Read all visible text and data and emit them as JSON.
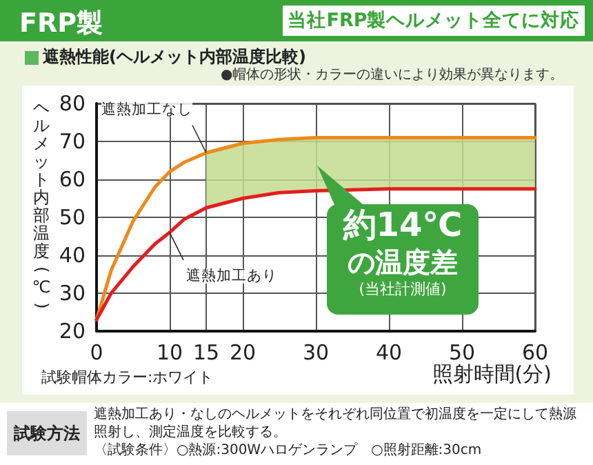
{
  "chart_data": {
    "type": "line",
    "title": "遮熱性能(ヘルメット内部温度比較)",
    "subtitle": "当社FRP製ヘルメット全てに対応",
    "xlabel": "照射時間(分)",
    "ylabel": "ヘルメット内部温度(℃)",
    "annotations": [
      "FRP製",
      "●帽体の形状・カラーの違いにより効果が異なります。",
      "約14℃\nの温度差",
      "(当社計測値)",
      "試験帽体カラー:ホワイト",
      "試験方法",
      "遮熱加工あり・なしのヘルメットをそれぞれ同位置で初温度を一定にして熱源照射し、測定温度を比較する。",
      "〈試験条件〉○熱源:300Wハロゲンランプ　○照射距離:30cm"
    ],
    "series": [
      {
        "name": "遮熱加工なし",
        "color": "#ee8a1a",
        "x": [
          0,
          2,
          5,
          8,
          10,
          12,
          15,
          18,
          20,
          25,
          30,
          40,
          50,
          60
        ],
        "values": [
          23,
          36,
          49,
          58,
          62,
          64.5,
          67,
          68.5,
          69.5,
          70.5,
          71,
          71,
          71,
          71
        ],
        "lower": [
          null,
          null,
          null,
          null,
          null,
          null,
          52.5,
          54,
          55,
          56.5,
          57,
          57.5,
          57.5,
          57.5
        ],
        "upper": [
          null,
          null,
          null,
          null,
          null,
          null,
          67,
          68.5,
          69.5,
          70.5,
          71,
          71,
          71,
          71
        ]
      },
      {
        "name": "遮熱加工あり",
        "color": "#e41e1e",
        "x": [
          0,
          2,
          5,
          8,
          10,
          12,
          15,
          18,
          20,
          25,
          30,
          40,
          50,
          60
        ],
        "values": [
          23,
          30,
          37,
          43,
          46,
          49.5,
          52.5,
          54,
          55,
          56.5,
          57,
          57.5,
          57.5,
          57.5
        ]
      }
    ],
    "xlim": [
      0,
      60
    ],
    "xticks": [
      0,
      10,
      15,
      20,
      30,
      40,
      50,
      60
    ],
    "ylim": [
      20,
      80
    ],
    "yticks": [
      20,
      30,
      40,
      50,
      60,
      70,
      80
    ],
    "grid": true,
    "legend": false,
    "marker": "none",
    "line_style": "solid"
  }
}
